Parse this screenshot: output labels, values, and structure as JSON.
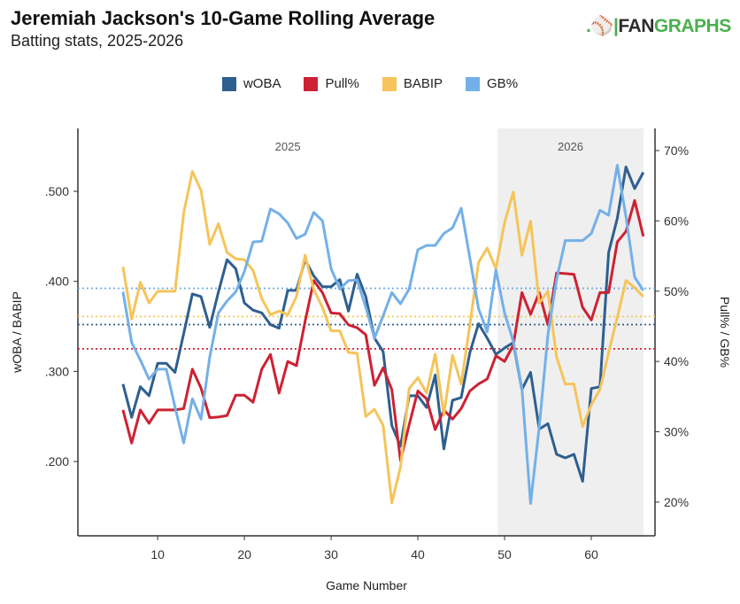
{
  "title": "Jeremiah Jackson's 10-Game Rolling Average",
  "subtitle": "Batting stats, 2025-2026",
  "logo": {
    "prefix": "FAN",
    "suffix": "GRAPHS"
  },
  "chart_data": {
    "type": "line",
    "xlabel": "Game Number",
    "ylabel_left": "wOBA / BABIP",
    "ylabel_right": "Pull% / GB%",
    "xlim": [
      0.8,
      67.35
    ],
    "ylim_left": [
      0.1175,
      0.5698
    ],
    "ylim_right": [
      15.2,
      73.15
    ],
    "x_ticks": [
      10,
      20,
      30,
      40,
      50,
      60
    ],
    "y_ticks_left": [
      {
        "v": 0.2,
        "label": ".200"
      },
      {
        "v": 0.3,
        "label": ".300"
      },
      {
        "v": 0.4,
        "label": ".400"
      },
      {
        "v": 0.5,
        "label": ".500"
      }
    ],
    "y_ticks_right": [
      {
        "v": 20,
        "label": "20%"
      },
      {
        "v": 30,
        "label": "30%"
      },
      {
        "v": 40,
        "label": "40%"
      },
      {
        "v": 50,
        "label": "50%"
      },
      {
        "v": 60,
        "label": "60%"
      },
      {
        "v": 70,
        "label": "70%"
      }
    ],
    "grid": false,
    "legend_position": "top",
    "season_regions": [
      {
        "label": "2025",
        "from": 0.8,
        "to": 49.2,
        "shaded": false
      },
      {
        "label": "2026",
        "from": 49.2,
        "to": 66,
        "shaded": true,
        "color": "#efefef"
      }
    ],
    "x": [
      6,
      7,
      8,
      9,
      10,
      11,
      12,
      13,
      14,
      15,
      16,
      17,
      18,
      19,
      20,
      21,
      22,
      23,
      24,
      25,
      26,
      27,
      28,
      29,
      30,
      31,
      32,
      33,
      34,
      35,
      36,
      37,
      38,
      39,
      40,
      41,
      42,
      43,
      44,
      45,
      46,
      47,
      48,
      49,
      50,
      51,
      52,
      53,
      54,
      55,
      56,
      57,
      58,
      59,
      60,
      61,
      62,
      63,
      64,
      65,
      66
    ],
    "series": [
      {
        "name": "wOBA",
        "axis": "left",
        "color": "#2f5f8f",
        "average": 0.352,
        "values": [
          0.286,
          0.249,
          0.283,
          0.273,
          0.309,
          0.309,
          0.299,
          0.342,
          0.386,
          0.383,
          0.349,
          0.388,
          0.424,
          0.414,
          0.376,
          0.368,
          0.365,
          0.352,
          0.348,
          0.39,
          0.39,
          0.424,
          0.406,
          0.394,
          0.394,
          0.402,
          0.367,
          0.408,
          0.383,
          0.337,
          0.322,
          0.24,
          0.217,
          0.273,
          0.273,
          0.26,
          0.296,
          0.214,
          0.268,
          0.271,
          0.321,
          0.353,
          0.337,
          0.319,
          0.326,
          0.332,
          0.28,
          0.299,
          0.236,
          0.242,
          0.208,
          0.204,
          0.208,
          0.178,
          0.281,
          0.283,
          0.432,
          0.47,
          0.527,
          0.503,
          0.521
        ]
      },
      {
        "name": "Pull%",
        "axis": "right",
        "color": "#cc2233",
        "average": 41.8,
        "values": [
          33.1,
          28.4,
          33.1,
          31.2,
          33.1,
          33.1,
          33.1,
          33.3,
          38.9,
          36.2,
          32.0,
          32.1,
          32.3,
          35.2,
          35.2,
          34.2,
          38.9,
          41.0,
          35.5,
          40.0,
          39.4,
          45.7,
          51.5,
          49.8,
          46.9,
          46.8,
          45.2,
          44.8,
          43.8,
          36.6,
          39.1,
          36.0,
          25.9,
          31.0,
          35.8,
          34.7,
          30.3,
          33.1,
          31.8,
          33.3,
          35.8,
          36.8,
          37.5,
          40.8,
          40.0,
          42.3,
          49.8,
          46.7,
          49.8,
          45.2,
          52.6,
          52.5,
          52.4,
          47.7,
          45.9,
          49.8,
          49.8,
          57.0,
          58.5,
          62.9,
          57.8
        ]
      },
      {
        "name": "BABIP",
        "axis": "left",
        "color": "#f5c45a",
        "average": 0.361,
        "values": [
          0.416,
          0.358,
          0.399,
          0.376,
          0.389,
          0.389,
          0.389,
          0.476,
          0.522,
          0.501,
          0.441,
          0.464,
          0.432,
          0.425,
          0.424,
          0.412,
          0.381,
          0.363,
          0.367,
          0.363,
          0.383,
          0.429,
          0.391,
          0.371,
          0.345,
          0.345,
          0.321,
          0.32,
          0.25,
          0.258,
          0.24,
          0.154,
          0.194,
          0.281,
          0.293,
          0.276,
          0.319,
          0.252,
          0.318,
          0.286,
          0.352,
          0.421,
          0.437,
          0.414,
          0.465,
          0.499,
          0.429,
          0.467,
          0.376,
          0.389,
          0.316,
          0.286,
          0.286,
          0.239,
          0.263,
          0.28,
          0.321,
          0.36,
          0.401,
          0.393,
          0.383
        ]
      },
      {
        "name": "GB%",
        "axis": "right",
        "color": "#74b0e8",
        "average": 50.4,
        "values": [
          49.9,
          42.7,
          40.2,
          37.5,
          38.9,
          38.9,
          33.5,
          28.4,
          34.7,
          31.8,
          40.6,
          46.9,
          48.6,
          49.9,
          52.8,
          57.0,
          57.1,
          61.7,
          61.0,
          59.7,
          57.5,
          58.1,
          61.2,
          60.0,
          53.2,
          50.3,
          51.5,
          51.6,
          47.7,
          43.3,
          46.5,
          49.8,
          48.2,
          50.3,
          55.9,
          56.5,
          56.5,
          58.2,
          59.0,
          61.8,
          54.7,
          47.5,
          44.2,
          53.0,
          46.9,
          42.9,
          36.2,
          19.8,
          30.7,
          43.8,
          51.7,
          57.2,
          57.2,
          57.2,
          58.2,
          61.5,
          60.8,
          67.9,
          60.6,
          52.0,
          50.1
        ]
      }
    ]
  }
}
